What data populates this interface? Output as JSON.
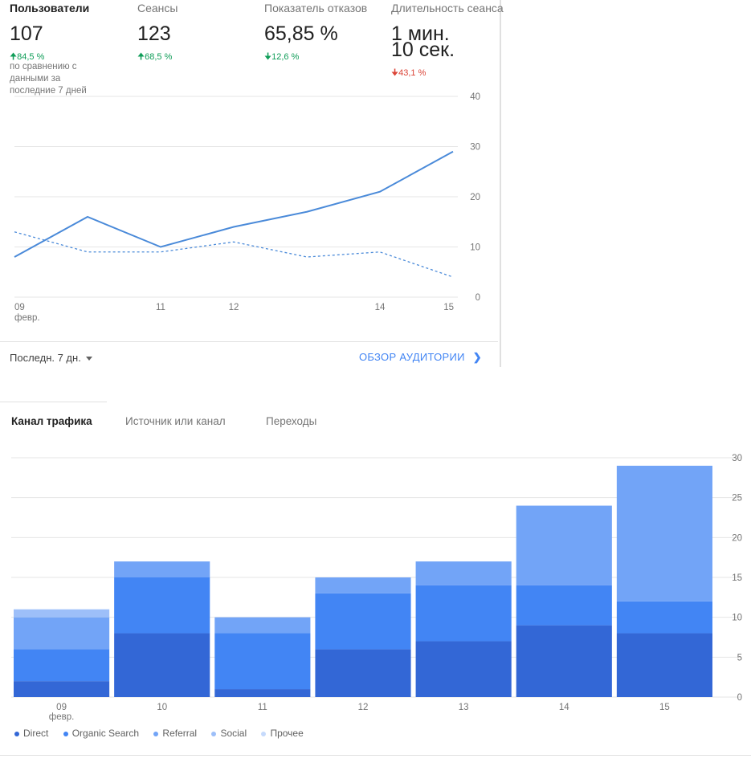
{
  "metrics": [
    {
      "label": "Пользователи",
      "value": "107",
      "change": "84,5 %",
      "direction": "up",
      "sentiment": "good",
      "active": true
    },
    {
      "label": "Сеансы",
      "value": "123",
      "change": "68,5 %",
      "direction": "up",
      "sentiment": "good",
      "active": false
    },
    {
      "label": "Показатель отказов",
      "value": "65,85 %",
      "change": "12,6 %",
      "direction": "down",
      "sentiment": "good",
      "active": false
    },
    {
      "label": "Длительность сеанса",
      "value": "1 мин.\n10 сек.",
      "change": "43,1 %",
      "direction": "down",
      "sentiment": "bad",
      "active": false
    }
  ],
  "compare_note": "по сравнению с данными за последние 7 дней",
  "footer": {
    "range_label": "Последн. 7 дн.",
    "overview_link": "ОБЗОР АУДИТОРИИ"
  },
  "colors": {
    "accent": "#4285f4",
    "line_current": "#4a8ad9",
    "line_previous": "#4a8ad9",
    "up": "#0f9d58",
    "down_bad": "#db4437",
    "gridline": "#e6e6e6",
    "axis_text": "#757575"
  },
  "tabs": [
    {
      "label": "Канал трафика",
      "active": true
    },
    {
      "label": "Источник или канал",
      "active": false
    },
    {
      "label": "Переходы",
      "active": false
    }
  ],
  "chart_data": [
    {
      "type": "line",
      "x": [
        "09 февр.",
        "10",
        "11",
        "12",
        "13",
        "14",
        "15"
      ],
      "x_tick_labels": [
        {
          "x": "09 февр.",
          "lines": [
            "09",
            "февр."
          ]
        },
        {
          "x": "11",
          "lines": [
            "11"
          ]
        },
        {
          "x": "12",
          "lines": [
            "12"
          ]
        },
        {
          "x": "14",
          "lines": [
            "14"
          ]
        },
        {
          "x": "15",
          "lines": [
            "15"
          ]
        }
      ],
      "series": [
        {
          "values": [
            8,
            16,
            10,
            14,
            17,
            21,
            29
          ],
          "style": "solid"
        },
        {
          "values": [
            13,
            9,
            9,
            11,
            8,
            9,
            4
          ],
          "style": "dashed"
        }
      ],
      "ylim": [
        0,
        40
      ],
      "yticks": [
        0,
        10,
        20,
        30,
        40
      ],
      "grid": true
    },
    {
      "type": "bar",
      "stacked": true,
      "categories": [
        "09 февр.",
        "10",
        "11",
        "12",
        "13",
        "14",
        "15"
      ],
      "category_labels": [
        [
          "09",
          "февр."
        ],
        [
          "10"
        ],
        [
          "11"
        ],
        [
          "12"
        ],
        [
          "13"
        ],
        [
          "14"
        ],
        [
          "15"
        ]
      ],
      "series": [
        {
          "name": "Direct",
          "color": "#3367d6",
          "values": [
            2,
            8,
            1,
            6,
            7,
            9,
            8
          ]
        },
        {
          "name": "Organic Search",
          "color": "#4285f4",
          "values": [
            4,
            7,
            7,
            7,
            7,
            5,
            4
          ]
        },
        {
          "name": "Referral",
          "color": "#72a4f7",
          "values": [
            4,
            2,
            2,
            2,
            3,
            10,
            17
          ]
        },
        {
          "name": "Social",
          "color": "#9dbff9",
          "values": [
            1,
            0,
            0,
            0,
            0,
            0,
            0
          ]
        },
        {
          "name": "Прочее",
          "color": "#c6dafc",
          "values": [
            0,
            0,
            0,
            0,
            0,
            0,
            0
          ]
        }
      ],
      "ylim": [
        0,
        30
      ],
      "yticks": [
        0,
        5,
        10,
        15,
        20,
        25,
        30
      ],
      "grid": true,
      "legend_position": "bottom-left"
    }
  ]
}
